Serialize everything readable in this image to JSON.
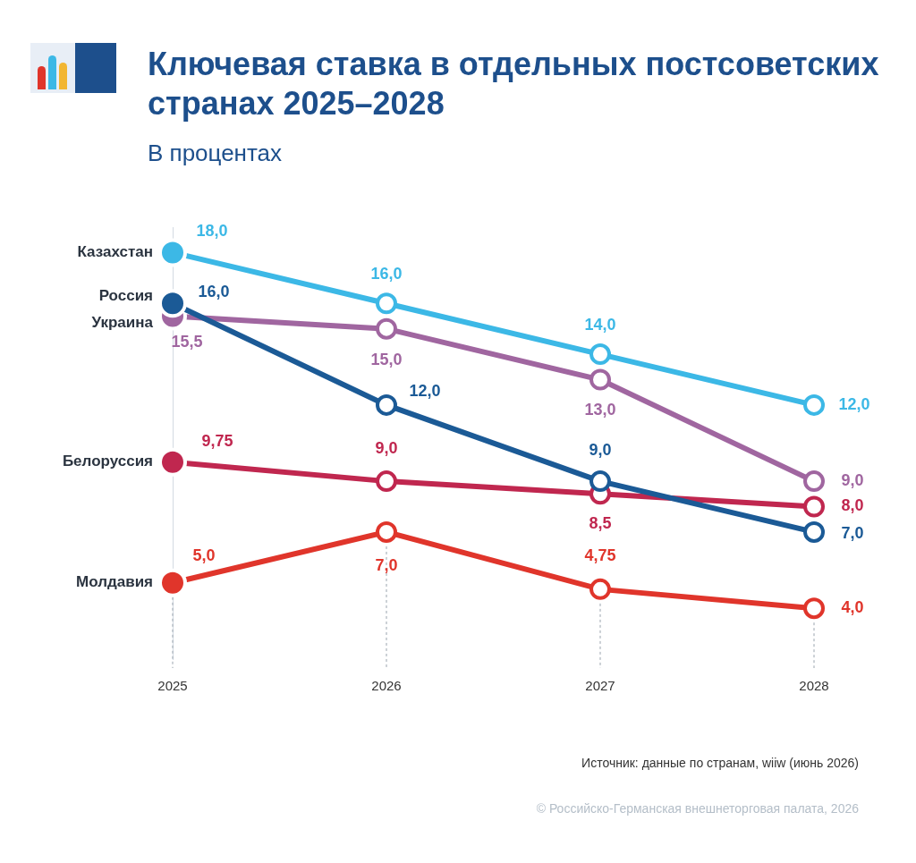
{
  "chart_data": {
    "type": "line",
    "title": "Ключевая ставка в отдельных постсоветских странах 2025–2028",
    "subtitle": "В процентах",
    "categories": [
      "2025",
      "2026",
      "2027",
      "2028"
    ],
    "series": [
      {
        "name": "Казахстан",
        "color": "#3cb8e6",
        "values": [
          18,
          16,
          14,
          12
        ],
        "value_labels": [
          "18,0",
          "16,0",
          "14,0",
          "12,0"
        ]
      },
      {
        "name": "Россия",
        "color": "#1b5a96",
        "values": [
          16,
          12,
          9,
          7
        ],
        "value_labels": [
          "16,0",
          "12,0",
          "9,0",
          "7,0"
        ]
      },
      {
        "name": "Украина",
        "color": "#a066a0",
        "values": [
          15.5,
          15,
          13,
          9
        ],
        "value_labels": [
          "15,5",
          "15,0",
          "13,0",
          "9,0"
        ]
      },
      {
        "name": "Белоруссия",
        "color": "#c0274f",
        "values": [
          9.75,
          9,
          8.5,
          8
        ],
        "value_labels": [
          "9,75",
          "9,0",
          "8,5",
          "8,0"
        ]
      },
      {
        "name": "Молдавия",
        "color": "#e0352b",
        "values": [
          5,
          7,
          4.75,
          4
        ],
        "value_labels": [
          "5,0",
          "7,0",
          "4,75",
          "4,0"
        ]
      }
    ],
    "ylim": [
      2,
      19
    ],
    "tick_labels": "x",
    "grid": false,
    "data_labels": true,
    "marker": "circle",
    "annotations": [
      "Источник: данные по странам, wiiw (июнь 2026)",
      "© Российско-Германская внешнеторговая палата, 2026"
    ]
  }
}
